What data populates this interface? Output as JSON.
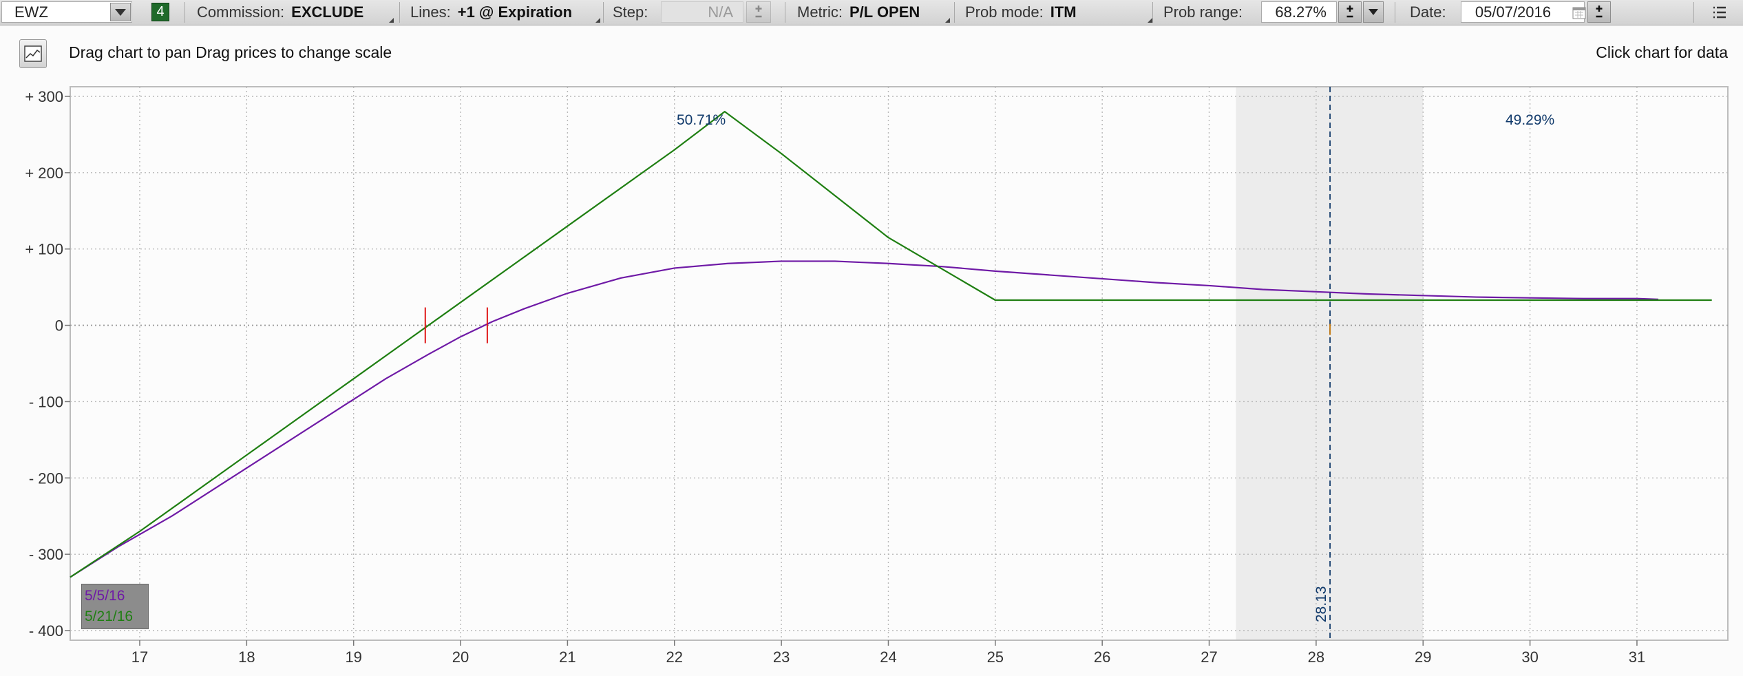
{
  "toolbar": {
    "symbol": "EWZ",
    "series_count": "4",
    "commission_label": "Commission:",
    "commission_value": "EXCLUDE",
    "lines_label": "Lines:",
    "lines_value": "+1 @ Expiration",
    "step_label": "Step:",
    "step_value": "N/A",
    "metric_label": "Metric:",
    "metric_value": "P/L OPEN",
    "prob_mode_label": "Prob mode:",
    "prob_mode_value": "ITM",
    "prob_range_label": "Prob range:",
    "prob_range_value": "68.27%",
    "date_label": "Date:",
    "date_value": "05/07/2016"
  },
  "info": {
    "hint_text": "Drag chart to pan Drag prices to change scale",
    "click_text": "Click chart for data"
  },
  "colors": {
    "series_current": "#6f1aa6",
    "series_expiration": "#1f7f12",
    "breakeven_marker": "#e01818",
    "price_line": "#113a6b",
    "prob_label": "#113a6b",
    "range_band": "#ececec"
  },
  "chart_data": {
    "type": "line",
    "x_ticks": [
      "17",
      "18",
      "19",
      "20",
      "21",
      "22",
      "23",
      "24",
      "25",
      "26",
      "27",
      "28",
      "29",
      "30",
      "31"
    ],
    "y_ticks": [
      "+ 300",
      "+ 200",
      "+ 100",
      "0",
      "- 100",
      "- 200",
      "- 300",
      "- 400"
    ],
    "xlim": [
      16.35,
      31.85
    ],
    "ylim": [
      -400,
      300
    ],
    "grid": true,
    "series": [
      {
        "name": "5/5/16",
        "color": "#6f1aa6",
        "x": [
          16.35,
          16.8,
          17.3,
          17.8,
          18.3,
          18.8,
          19.3,
          19.7,
          20.0,
          20.3,
          20.6,
          21.0,
          21.5,
          22.0,
          22.5,
          23.0,
          23.5,
          24.0,
          24.5,
          25.0,
          25.5,
          26.0,
          26.5,
          27.0,
          27.5,
          28.0,
          28.5,
          29.0,
          29.5,
          30.0,
          30.5,
          31.0,
          31.2
        ],
        "y": [
          -330,
          -290,
          -250,
          -205,
          -160,
          -115,
          -70,
          -38,
          -15,
          5,
          22,
          42,
          62,
          75,
          81,
          84,
          84,
          81,
          77,
          71,
          66,
          61,
          56,
          52,
          47,
          44,
          41,
          39,
          37,
          36,
          35,
          35,
          34
        ]
      },
      {
        "name": "5/21/16",
        "color": "#1f7f12",
        "x": [
          16.35,
          17.0,
          18.0,
          19.0,
          20.0,
          21.0,
          22.0,
          22.47,
          23.0,
          24.0,
          25.0,
          26.0,
          27.0,
          28.0,
          29.0,
          30.0,
          31.0,
          31.7
        ],
        "y": [
          -330,
          -270,
          -170,
          -70,
          30,
          130,
          230,
          280,
          225,
          115,
          33,
          33,
          33,
          33,
          33,
          33,
          33,
          33
        ]
      }
    ],
    "breakevens": [
      19.67,
      20.25
    ],
    "current_price": 28.13,
    "current_price_label": "28.13",
    "prob_range_band": [
      27.25,
      29.0
    ],
    "annotations": [
      {
        "text": "50.71%",
        "x": 22.25,
        "y": 263
      },
      {
        "text": "49.29%",
        "x": 30.0,
        "y": 263
      }
    ]
  }
}
